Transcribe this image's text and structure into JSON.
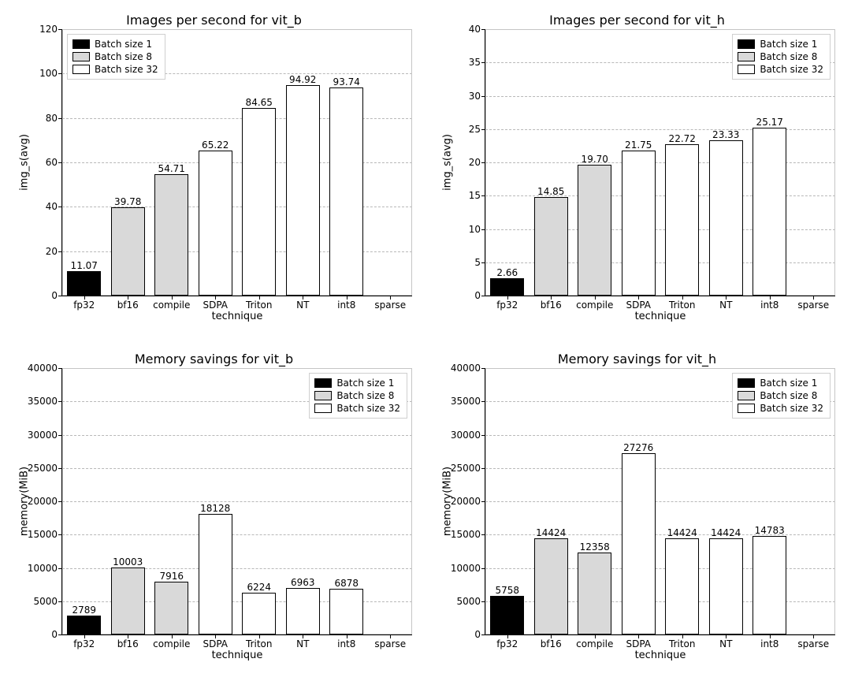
{
  "global": {
    "font_family": "DejaVu Sans",
    "title_fontsize": 16,
    "axis_label_fontsize": 13,
    "tick_fontsize": 12,
    "bar_label_fontsize": 12,
    "legend_fontsize": 12,
    "text_color": "#000000",
    "background_color": "#ffffff",
    "grid_color": "#b8b8b8",
    "grid_style": "dashed",
    "bar_border_color": "#000000",
    "bar_border_width": 1,
    "bar_relative_width": 0.78,
    "colors": {
      "batch1": "#000000",
      "batch8": "#d9d9d9",
      "batch32": "#ffffff"
    }
  },
  "categories": [
    "fp32",
    "bf16",
    "compile",
    "SDPA",
    "Triton",
    "NT",
    "int8",
    "sparse"
  ],
  "color_by_category": {
    "fp32": "batch1",
    "bf16": "batch8",
    "compile": "batch8",
    "SDPA": "batch32",
    "Triton": "batch32",
    "NT": "batch32",
    "int8": "batch32",
    "sparse": "batch32"
  },
  "legend_items": [
    {
      "label": "Batch size 1",
      "color_key": "batch1"
    },
    {
      "label": "Batch size 8",
      "color_key": "batch8"
    },
    {
      "label": "Batch size 32",
      "color_key": "batch32"
    }
  ],
  "panels": [
    {
      "key": "imgs_vit_b",
      "title": "Images per second for vit_b",
      "xlabel": "technique",
      "ylabel": "img_s(avg)",
      "ylim": [
        0,
        120
      ],
      "ytick_step": 20,
      "legend_pos": "top-left",
      "label_decimals": 2,
      "values": {
        "fp32": 11.07,
        "bf16": 39.78,
        "compile": 54.71,
        "SDPA": 65.22,
        "Triton": 84.65,
        "NT": 94.92,
        "int8": 93.74,
        "sparse": null
      }
    },
    {
      "key": "imgs_vit_h",
      "title": "Images per second for vit_h",
      "xlabel": "technique",
      "ylabel": "img_s(avg)",
      "ylim": [
        0,
        40
      ],
      "ytick_step": 5,
      "legend_pos": "top-right",
      "label_decimals": 2,
      "values": {
        "fp32": 2.66,
        "bf16": 14.85,
        "compile": 19.7,
        "SDPA": 21.75,
        "Triton": 22.72,
        "NT": 23.33,
        "int8": 25.17,
        "sparse": null
      }
    },
    {
      "key": "mem_vit_b",
      "title": "Memory savings for vit_b",
      "xlabel": "technique",
      "ylabel": "memory(MiB)",
      "ylim": [
        0,
        40000
      ],
      "ytick_step": 5000,
      "legend_pos": "top-right",
      "label_decimals": 0,
      "values": {
        "fp32": 2789,
        "bf16": 10003,
        "compile": 7916,
        "SDPA": 18128,
        "Triton": 6224,
        "NT": 6963,
        "int8": 6878,
        "sparse": null
      }
    },
    {
      "key": "mem_vit_h",
      "title": "Memory savings for vit_h",
      "xlabel": "technique",
      "ylabel": "memory(MiB)",
      "ylim": [
        0,
        40000
      ],
      "ytick_step": 5000,
      "legend_pos": "top-right",
      "label_decimals": 0,
      "values": {
        "fp32": 5758,
        "bf16": 14424,
        "compile": 12358,
        "SDPA": 27276,
        "Triton": 14424,
        "NT": 14424,
        "int8": 14783,
        "sparse": null
      }
    }
  ]
}
